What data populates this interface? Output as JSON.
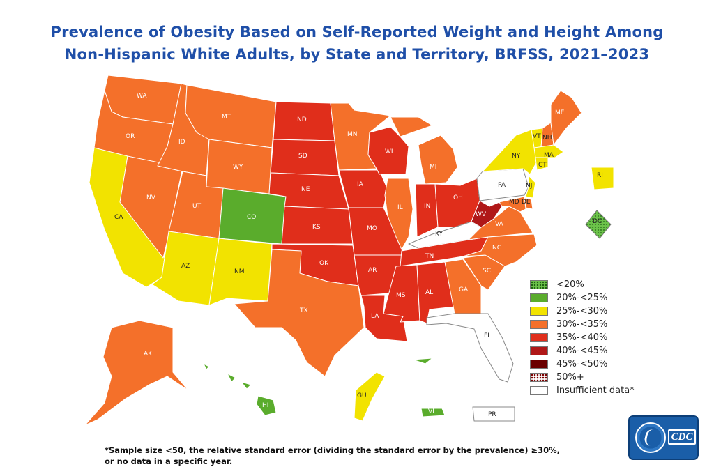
{
  "title": {
    "line1": "Prevalence of Obesity Based on Self-Reported Weight and Height Among",
    "line2": "Non-Hispanic White Adults, by State and Territory, BRFSS, 2021–2023"
  },
  "colors": {
    "title": "#1f4fa8",
    "lt20": "#6cc24a",
    "r20_25": "#5aac2c",
    "r25_30": "#f2e300",
    "r30_35": "#f4702a",
    "r35_40": "#e02e1b",
    "r40_45": "#b01818",
    "r45_50": "#6b0000",
    "r50plus": "#ffffff",
    "insufficient": "#ffffff"
  },
  "legend": {
    "items": [
      {
        "label": "<20%",
        "color": "#6cc24a",
        "pattern": "dots-green"
      },
      {
        "label": "20%-<25%",
        "color": "#5aac2c",
        "pattern": "none"
      },
      {
        "label": "25%-<30%",
        "color": "#f2e300",
        "pattern": "none"
      },
      {
        "label": "30%-<35%",
        "color": "#f4702a",
        "pattern": "none"
      },
      {
        "label": "35%-<40%",
        "color": "#e02e1b",
        "pattern": "none"
      },
      {
        "label": "40%-<45%",
        "color": "#b01818",
        "pattern": "none"
      },
      {
        "label": "45%-<50%",
        "color": "#6b0000",
        "pattern": "none"
      },
      {
        "label": "50%+",
        "color": "#ffffff",
        "pattern": "dots-red"
      },
      {
        "label": "Insufficient data*",
        "color": "#ffffff",
        "pattern": "none"
      }
    ]
  },
  "states": [
    {
      "code": "WA",
      "range": "30%-<35%"
    },
    {
      "code": "OR",
      "range": "30%-<35%"
    },
    {
      "code": "CA",
      "range": "25%-<30%"
    },
    {
      "code": "NV",
      "range": "30%-<35%"
    },
    {
      "code": "ID",
      "range": "30%-<35%"
    },
    {
      "code": "MT",
      "range": "30%-<35%"
    },
    {
      "code": "WY",
      "range": "30%-<35%"
    },
    {
      "code": "UT",
      "range": "30%-<35%"
    },
    {
      "code": "AZ",
      "range": "25%-<30%"
    },
    {
      "code": "CO",
      "range": "20%-<25%"
    },
    {
      "code": "NM",
      "range": "25%-<30%"
    },
    {
      "code": "ND",
      "range": "35%-<40%"
    },
    {
      "code": "SD",
      "range": "35%-<40%"
    },
    {
      "code": "NE",
      "range": "35%-<40%"
    },
    {
      "code": "KS",
      "range": "35%-<40%"
    },
    {
      "code": "OK",
      "range": "35%-<40%"
    },
    {
      "code": "TX",
      "range": "30%-<35%"
    },
    {
      "code": "MN",
      "range": "30%-<35%"
    },
    {
      "code": "IA",
      "range": "35%-<40%"
    },
    {
      "code": "MO",
      "range": "35%-<40%"
    },
    {
      "code": "AR",
      "range": "35%-<40%"
    },
    {
      "code": "LA",
      "range": "35%-<40%"
    },
    {
      "code": "WI",
      "range": "35%-<40%"
    },
    {
      "code": "IL",
      "range": "30%-<35%"
    },
    {
      "code": "MI",
      "range": "30%-<35%"
    },
    {
      "code": "IN",
      "range": "35%-<40%"
    },
    {
      "code": "OH",
      "range": "35%-<40%"
    },
    {
      "code": "KY",
      "range": "Insufficient data*"
    },
    {
      "code": "TN",
      "range": "35%-<40%"
    },
    {
      "code": "MS",
      "range": "35%-<40%"
    },
    {
      "code": "AL",
      "range": "35%-<40%"
    },
    {
      "code": "GA",
      "range": "30%-<35%"
    },
    {
      "code": "FL",
      "range": "Insufficient data*"
    },
    {
      "code": "SC",
      "range": "30%-<35%"
    },
    {
      "code": "NC",
      "range": "30%-<35%"
    },
    {
      "code": "VA",
      "range": "30%-<35%"
    },
    {
      "code": "WV",
      "range": "40%-<45%"
    },
    {
      "code": "PA",
      "range": "Insufficient data*"
    },
    {
      "code": "NY",
      "range": "25%-<30%"
    },
    {
      "code": "VT",
      "range": "25%-<30%"
    },
    {
      "code": "NH",
      "range": "30%-<35%"
    },
    {
      "code": "ME",
      "range": "30%-<35%"
    },
    {
      "code": "MA",
      "range": "25%-<30%"
    },
    {
      "code": "CT",
      "range": "25%-<30%"
    },
    {
      "code": "RI",
      "range": "25%-<30%"
    },
    {
      "code": "NJ",
      "range": "25%-<30%"
    },
    {
      "code": "DE",
      "range": "30%-<35%"
    },
    {
      "code": "MD",
      "range": "30%-<35%"
    },
    {
      "code": "DC",
      "range": "<20%"
    },
    {
      "code": "AK",
      "range": "30%-<35%"
    },
    {
      "code": "HI",
      "range": "20%-<25%"
    },
    {
      "code": "GU",
      "range": "25%-<30%"
    },
    {
      "code": "VI",
      "range": "20%-<25%"
    },
    {
      "code": "PR",
      "range": "Insufficient data*"
    }
  ],
  "footnote": {
    "line1": "*Sample size <50, the relative standard error (dividing the standard error by the prevalence) ≥30%,",
    "line2": "or no data in a specific year."
  },
  "logo": {
    "text": "CDC"
  }
}
